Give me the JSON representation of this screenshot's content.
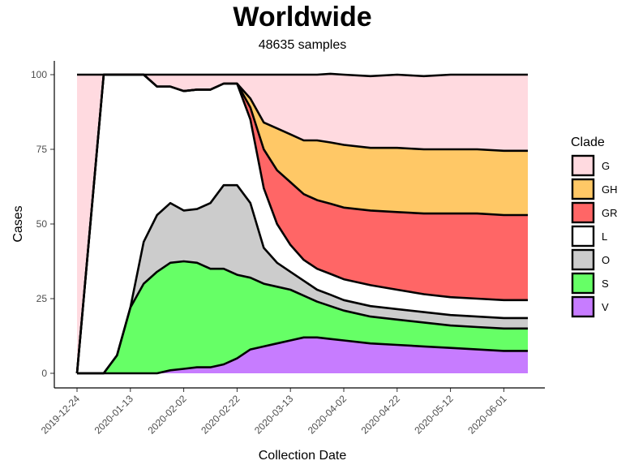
{
  "chart_data": {
    "type": "area",
    "title": "Worldwide",
    "subtitle": "48635 samples",
    "xlabel": "Collection Date",
    "ylabel": "Cases",
    "x_tick_labels": [
      "2019-12-24",
      "2020-01-13",
      "2020-02-02",
      "2020-02-22",
      "2020-03-13",
      "2020-04-02",
      "2020-04-22",
      "2020-05-12",
      "2020-06-01"
    ],
    "y_tick_labels": [
      "0",
      "25",
      "50",
      "75",
      "100"
    ],
    "xlim": [
      "2019-12-24",
      "2020-06-10"
    ],
    "ylim": [
      0,
      100
    ],
    "stacked": true,
    "grid": false,
    "legend_title": "Clade",
    "legend_position": "right",
    "x": [
      "2019-12-24",
      "2020-01-03",
      "2020-01-08",
      "2020-01-13",
      "2020-01-18",
      "2020-01-23",
      "2020-01-28",
      "2020-02-02",
      "2020-02-07",
      "2020-02-12",
      "2020-02-17",
      "2020-02-22",
      "2020-02-27",
      "2020-03-03",
      "2020-03-08",
      "2020-03-13",
      "2020-03-18",
      "2020-03-23",
      "2020-03-28",
      "2020-04-02",
      "2020-04-12",
      "2020-04-22",
      "2020-05-02",
      "2020-05-12",
      "2020-05-22",
      "2020-06-01",
      "2020-06-10"
    ],
    "series": [
      {
        "name": "V",
        "color": "#c77cff",
        "values": [
          0,
          0,
          0,
          0,
          0,
          0,
          1,
          1.5,
          2,
          2,
          3,
          5,
          8,
          9,
          10,
          11,
          12,
          12,
          11.5,
          11,
          10,
          9.5,
          9,
          8.5,
          8,
          7.5,
          7.5
        ]
      },
      {
        "name": "S",
        "color": "#66ff66",
        "values": [
          0,
          0,
          6,
          22,
          30,
          34,
          36,
          36,
          35,
          33,
          32,
          28,
          24,
          21,
          19,
          17,
          14,
          12,
          11,
          10,
          9,
          8.5,
          8,
          7.5,
          7.5,
          7.5,
          7.5
        ]
      },
      {
        "name": "O",
        "color": "#cccccc",
        "values": [
          0,
          0,
          0,
          0,
          14,
          19,
          20,
          17,
          18,
          22,
          28,
          30,
          25,
          12,
          8,
          6,
          5,
          4,
          3.8,
          3.5,
          3.5,
          3.5,
          3.5,
          3.5,
          3.5,
          3.5,
          3.5
        ]
      },
      {
        "name": "L",
        "color": "#ffffff",
        "values": [
          0,
          100,
          94,
          78,
          56,
          43,
          39,
          40,
          40,
          38,
          34,
          34,
          28,
          20,
          13,
          9,
          7,
          7,
          7,
          7,
          7,
          6.5,
          6,
          6,
          6,
          6,
          6
        ]
      },
      {
        "name": "GR",
        "color": "#ff6666",
        "values": [
          0,
          0,
          0,
          0,
          0,
          0,
          0,
          0,
          0,
          0,
          0,
          0,
          4,
          13,
          18,
          21,
          22,
          23,
          23.5,
          24,
          25,
          26,
          27,
          28,
          28.5,
          28.5,
          28.5
        ]
      },
      {
        "name": "GH",
        "color": "#ffc866",
        "values": [
          0,
          0,
          0,
          0,
          0,
          0,
          0,
          0,
          0,
          0,
          0,
          0,
          3,
          9,
          14,
          16,
          18,
          20,
          20.5,
          21,
          21,
          21.5,
          21.5,
          21.5,
          21.5,
          21.5,
          21.5
        ]
      },
      {
        "name": "G",
        "color": "#ffdae0",
        "values": [
          100,
          0,
          0,
          0,
          0,
          4,
          4,
          5.5,
          5,
          5,
          3,
          3,
          8,
          16,
          18,
          20,
          22,
          22,
          23,
          23.5,
          24,
          24.5,
          24.5,
          25,
          25,
          25.5,
          25.5
        ]
      }
    ]
  }
}
